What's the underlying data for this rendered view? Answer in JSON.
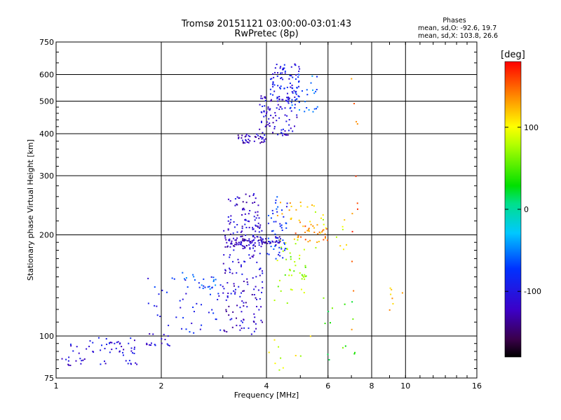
{
  "chart_data": {
    "type": "scatter",
    "title": "Tromsø 20151121 03:00:00-03:01:43",
    "subtitle": "RwPretec (8p)",
    "xlabel": "Frequency [MHz]",
    "ylabel": "Stationary phase Virtual Height [km]",
    "x_scale": "log",
    "y_scale": "log",
    "xlim": [
      1,
      16
    ],
    "ylim": [
      75,
      750
    ],
    "x_ticks": [
      1,
      2,
      4,
      6,
      8,
      10,
      16
    ],
    "y_ticks": [
      75,
      100,
      200,
      300,
      400,
      500,
      600,
      750
    ],
    "x_gridlines": [
      2,
      4,
      6,
      8,
      10
    ],
    "y_gridlines": [
      100,
      200,
      300,
      400,
      500,
      600
    ],
    "grid": true,
    "colorbar": {
      "label": "[deg]",
      "range": [
        -180,
        180
      ],
      "ticks": [
        100,
        0,
        -100
      ],
      "colormap": "rainbow",
      "placement": "right"
    },
    "phases": {
      "heading": "Phases",
      "line_o": "mean, sd,O: -92.6, 19.7",
      "line_x": "mean, sd,X: 103.8, 26.6"
    },
    "clusters": [
      {
        "x": [
          1.0,
          1.15
        ],
        "y": [
          80,
          95
        ],
        "phase": -110,
        "count": 12
      },
      {
        "x": [
          1.15,
          1.75
        ],
        "y": [
          82,
          100
        ],
        "phase": -105,
        "count": 55
      },
      {
        "x": [
          1.75,
          2.15
        ],
        "y": [
          92,
          102
        ],
        "phase": -110,
        "count": 18
      },
      {
        "x": [
          1.8,
          3.0
        ],
        "y": [
          100,
          150
        ],
        "phase": -90,
        "count": 45
      },
      {
        "x": [
          2.3,
          2.9
        ],
        "y": [
          138,
          155
        ],
        "phase": -65,
        "count": 22
      },
      {
        "x": [
          3.0,
          3.9
        ],
        "y": [
          100,
          215
        ],
        "phase": -115,
        "count": 160
      },
      {
        "x": [
          3.1,
          3.85
        ],
        "y": [
          210,
          265
        ],
        "phase": -115,
        "count": 55
      },
      {
        "x": [
          3.05,
          4.4
        ],
        "y": [
          184,
          198
        ],
        "phase": -118,
        "count": 90
      },
      {
        "x": [
          3.3,
          4.0
        ],
        "y": [
          375,
          400
        ],
        "phase": -118,
        "count": 40
      },
      {
        "x": [
          3.8,
          4.9
        ],
        "y": [
          395,
          520
        ],
        "phase": -110,
        "count": 95
      },
      {
        "x": [
          4.1,
          5.0
        ],
        "y": [
          500,
          650
        ],
        "phase": -95,
        "count": 75
      },
      {
        "x": [
          4.6,
          5.6
        ],
        "y": [
          460,
          600
        ],
        "phase": -60,
        "count": 35
      },
      {
        "x": [
          4.0,
          4.6
        ],
        "y": [
          165,
          260
        ],
        "phase": -80,
        "count": 50
      },
      {
        "x": [
          4.2,
          5.2
        ],
        "y": [
          125,
          195
        ],
        "phase": 70,
        "count": 45
      },
      {
        "x": [
          4.8,
          6.0
        ],
        "y": [
          190,
          215
        ],
        "phase": 140,
        "count": 35
      },
      {
        "x": [
          4.3,
          5.5
        ],
        "y": [
          215,
          250
        ],
        "phase": 120,
        "count": 18
      },
      {
        "x": [
          5.5,
          6.8
        ],
        "y": [
          180,
          250
        ],
        "phase": 95,
        "count": 15
      },
      {
        "x": [
          5.8,
          7.2
        ],
        "y": [
          80,
          135
        ],
        "phase": 40,
        "count": 14
      },
      {
        "x": [
          7.0,
          7.3
        ],
        "y": [
          100,
          600
        ],
        "phase": 150,
        "count": 12
      },
      {
        "x": [
          9.0,
          10.2
        ],
        "y": [
          115,
          145
        ],
        "phase": 120,
        "count": 7
      },
      {
        "x": [
          4.0,
          5.5
        ],
        "y": [
          78,
          100
        ],
        "phase": 90,
        "count": 10
      }
    ]
  }
}
